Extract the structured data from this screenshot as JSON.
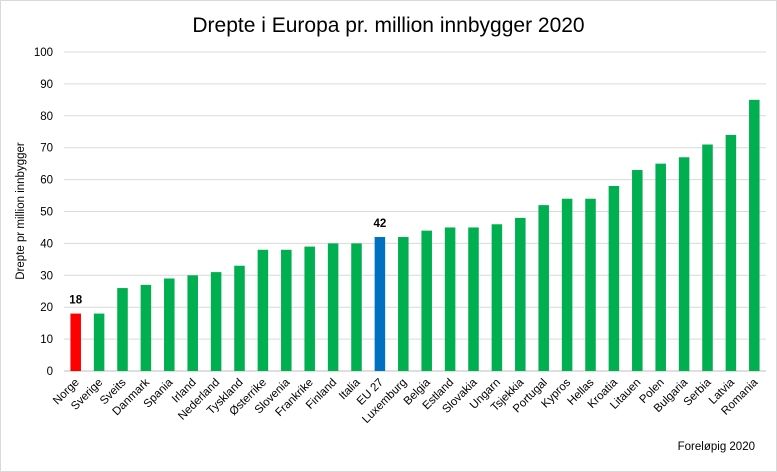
{
  "chart_data": {
    "type": "bar",
    "title": "Drepte i Europa pr. million innbygger 2020",
    "ylabel": "Drepte pr million innbygger",
    "xlabel": "",
    "ylim": [
      0,
      100
    ],
    "yticks": [
      0,
      10,
      20,
      30,
      40,
      50,
      60,
      70,
      80,
      90,
      100
    ],
    "grid": true,
    "note": "Foreløpig 2020",
    "categories": [
      "Norge",
      "Sverige",
      "Sveits",
      "Danmark",
      "Spania",
      "Irland",
      "Nederland",
      "Tyskland",
      "Østerrike",
      "Slovenia",
      "Frankrike",
      "Finland",
      "Italia",
      "EU 27",
      "Luxemburg",
      "Belgia",
      "Estland",
      "Slovakia",
      "Ungarn",
      "Tsjekkia",
      "Portugal",
      "Kypros",
      "Hellas",
      "Kroatia",
      "Litauen",
      "Polen",
      "Bulgaria",
      "Serbia",
      "Latvia",
      "Romania"
    ],
    "values": [
      18,
      18,
      26,
      27,
      29,
      30,
      31,
      33,
      38,
      38,
      39,
      40,
      40,
      42,
      42,
      44,
      45,
      45,
      46,
      48,
      52,
      54,
      54,
      58,
      63,
      65,
      67,
      71,
      74,
      85
    ],
    "bar_colors": [
      "#ff0000",
      "#00b050",
      "#00b050",
      "#00b050",
      "#00b050",
      "#00b050",
      "#00b050",
      "#00b050",
      "#00b050",
      "#00b050",
      "#00b050",
      "#00b050",
      "#00b050",
      "#0070c0",
      "#00b050",
      "#00b050",
      "#00b050",
      "#00b050",
      "#00b050",
      "#00b050",
      "#00b050",
      "#00b050",
      "#00b050",
      "#00b050",
      "#00b050",
      "#00b050",
      "#00b050",
      "#00b050",
      "#00b050",
      "#00b050"
    ],
    "data_labels": [
      {
        "category": "Norge",
        "text": "18"
      },
      {
        "category": "EU 27",
        "text": "42"
      }
    ]
  }
}
